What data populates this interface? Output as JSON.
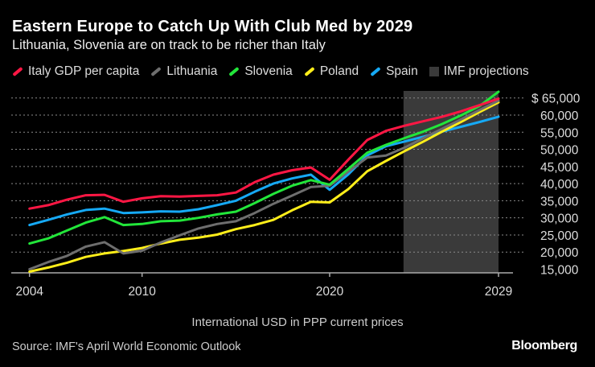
{
  "chart_data": {
    "type": "line",
    "title": "Eastern Europe to Catch Up With Club Med by 2029",
    "subtitle": "Lithuania, Slovenia are on track to be richer than Italy",
    "xlabel": "International USD in PPP current prices",
    "x": [
      2004,
      2005,
      2006,
      2007,
      2008,
      2009,
      2010,
      2011,
      2012,
      2013,
      2014,
      2015,
      2016,
      2017,
      2018,
      2019,
      2020,
      2021,
      2022,
      2023,
      2024,
      2025,
      2026,
      2027,
      2028,
      2029
    ],
    "xlim": [
      2004,
      2029
    ],
    "x_ticks": [
      "2004",
      "2010",
      "2020",
      "2029"
    ],
    "ylim": [
      15000,
      65000
    ],
    "y_ticks": [
      {
        "value": 65000,
        "label": "$ 65,000"
      },
      {
        "value": 60000,
        "label": "60,000"
      },
      {
        "value": 55000,
        "label": "55,000"
      },
      {
        "value": 50000,
        "label": "50,000"
      },
      {
        "value": 45000,
        "label": "45,000"
      },
      {
        "value": 40000,
        "label": "40,000"
      },
      {
        "value": 35000,
        "label": "35,000"
      },
      {
        "value": 30000,
        "label": "30,000"
      },
      {
        "value": 25000,
        "label": "25,000"
      },
      {
        "value": 20000,
        "label": "20,000"
      },
      {
        "value": 15000,
        "label": "15,000"
      }
    ],
    "grid": "horizontal dotted",
    "legend_position": "top",
    "shaded_region": {
      "name": "IMF projections",
      "from": 2024,
      "to": 2029,
      "color": "#3a3a3a"
    },
    "series": [
      {
        "name": "Italy GDP per capita",
        "color": "#ff1744",
        "values": [
          32700,
          33700,
          35300,
          36600,
          36700,
          34700,
          35700,
          36300,
          36200,
          36400,
          36600,
          37400,
          40400,
          42600,
          43900,
          44700,
          41100,
          47000,
          52700,
          55400,
          56900,
          58200,
          59500,
          61100,
          62900,
          64800
        ]
      },
      {
        "name": "Lithuania",
        "color": "#6e6e6e",
        "values": [
          15000,
          17100,
          18900,
          21600,
          22900,
          19600,
          20400,
          22800,
          24900,
          26900,
          28200,
          29000,
          31400,
          34100,
          36500,
          39000,
          39400,
          43500,
          47600,
          48200,
          50500,
          53300,
          56000,
          58700,
          61500,
          64200
        ]
      },
      {
        "name": "Slovenia",
        "color": "#22e63a",
        "values": [
          22500,
          24000,
          26300,
          28600,
          30200,
          27900,
          28200,
          29000,
          29200,
          30000,
          31000,
          31800,
          34300,
          37000,
          39400,
          41000,
          39700,
          44300,
          49000,
          51300,
          53300,
          55200,
          57400,
          59900,
          62700,
          66800
        ]
      },
      {
        "name": "Poland",
        "color": "#ffee1a",
        "values": [
          14300,
          15500,
          16900,
          18600,
          19600,
          20300,
          21200,
          22500,
          23600,
          24200,
          25100,
          26700,
          27900,
          29400,
          32200,
          34700,
          34500,
          38400,
          43600,
          46600,
          49500,
          52300,
          55200,
          58000,
          60900,
          63700
        ]
      },
      {
        "name": "Spain",
        "color": "#16a9f5",
        "values": [
          27900,
          29400,
          31000,
          32300,
          32700,
          31400,
          31600,
          31900,
          31800,
          32500,
          33700,
          35000,
          37600,
          40000,
          41500,
          42600,
          38200,
          42700,
          48200,
          50900,
          52300,
          53700,
          55200,
          56600,
          58000,
          59500
        ]
      }
    ]
  },
  "footer": {
    "source": "Source: IMF's April World Economic Outlook",
    "brand": "Bloomberg"
  }
}
